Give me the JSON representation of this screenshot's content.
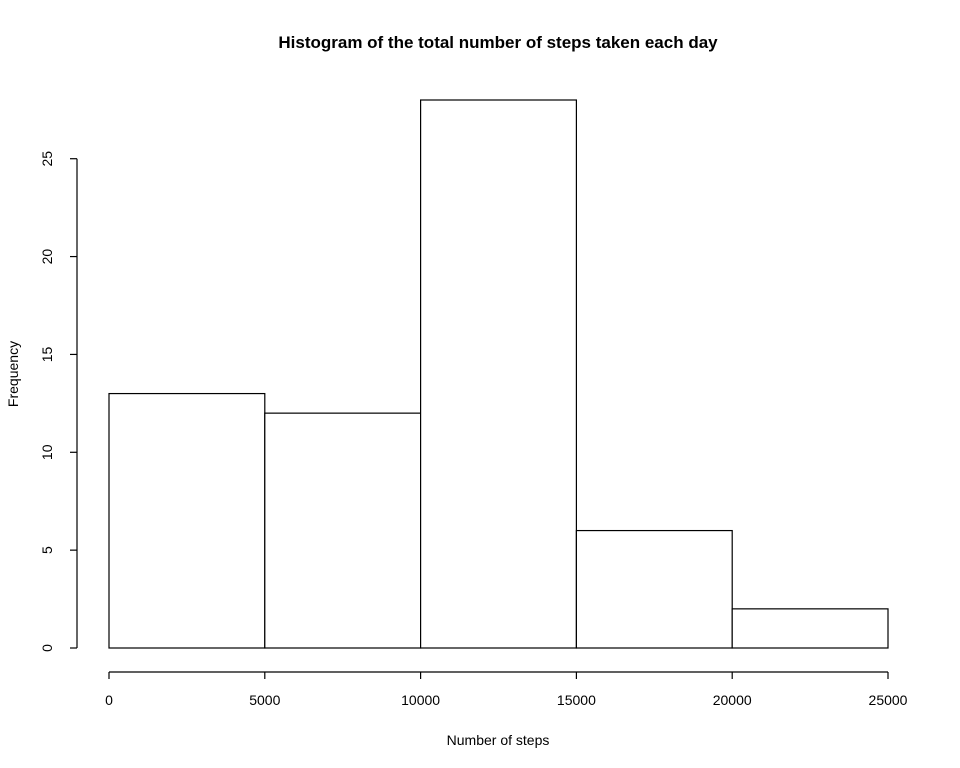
{
  "chart_data": {
    "type": "bar",
    "title": "Histogram of the total number of steps taken each day",
    "xlabel": "Number of steps",
    "ylabel": "Frequency",
    "bins": [
      {
        "x0": 0,
        "x1": 5000,
        "count": 13
      },
      {
        "x0": 5000,
        "x1": 10000,
        "count": 12
      },
      {
        "x0": 10000,
        "x1": 15000,
        "count": 28
      },
      {
        "x0": 15000,
        "x1": 20000,
        "count": 6
      },
      {
        "x0": 20000,
        "x1": 25000,
        "count": 2
      }
    ],
    "xlim": [
      0,
      25000
    ],
    "ylim": [
      0,
      28
    ],
    "x_ticks": [
      0,
      5000,
      10000,
      15000,
      20000,
      25000
    ],
    "y_ticks": [
      0,
      5,
      10,
      15,
      20,
      25
    ],
    "grid": false,
    "bar_fill": "#ffffff",
    "bar_stroke": "#000000"
  }
}
